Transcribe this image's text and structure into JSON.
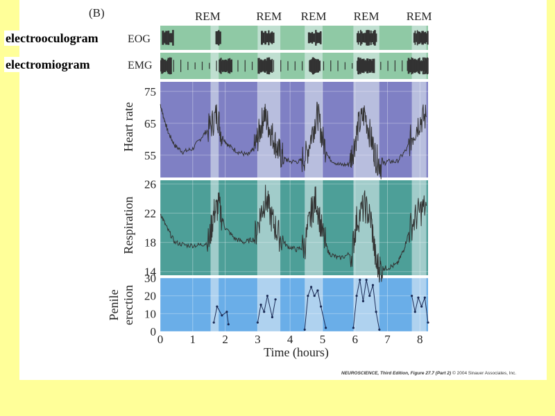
{
  "slide": {
    "eog_full_label": "electrooculogram",
    "emg_full_label": "electromiogram",
    "credit_italic": "NEUROSCIENCE, Third Edition, Figure 27.7 (Part 2)",
    "credit_rest": "© 2004 Sinauer Associates, Inc."
  },
  "colors": {
    "slide_bg": "#ffff99",
    "eog_emg_bg": "#8fc9a5",
    "heart_bg": "#7f80c4",
    "resp_bg": "#4d9f98",
    "penile_bg": "#6aaee8",
    "rem_band": "#e8f1f4",
    "trace": "#333333"
  },
  "chart_data": {
    "type": "line",
    "panel_label": "(B)",
    "xlabel": "Time (hours)",
    "xlim": [
      0,
      8.25
    ],
    "xticks": [
      0,
      1,
      2,
      3,
      4,
      5,
      6,
      7,
      8
    ],
    "rem_label": "REM",
    "rem_periods": [
      [
        1.55,
        1.8
      ],
      [
        3.0,
        3.7
      ],
      [
        4.45,
        5.0
      ],
      [
        5.95,
        6.75
      ],
      [
        7.75,
        8.2
      ]
    ],
    "eog": {
      "label": "EOG",
      "bursts": [
        [
          0.05,
          0.4
        ],
        [
          1.7,
          1.85
        ],
        [
          3.1,
          3.5
        ],
        [
          4.55,
          4.95
        ],
        [
          6.05,
          6.65
        ],
        [
          7.8,
          8.25
        ]
      ]
    },
    "emg": {
      "label": "EMG",
      "bursts": [
        [
          0.0,
          0.35
        ],
        [
          1.8,
          2.2
        ],
        [
          3.0,
          3.45
        ],
        [
          4.6,
          4.9
        ],
        [
          6.05,
          6.6
        ],
        [
          7.6,
          8.25
        ]
      ]
    },
    "heart_rate": {
      "ylabel": "Heart rate",
      "ylim": [
        48,
        78
      ],
      "yticks": [
        55,
        65,
        75
      ],
      "x": [
        0.0,
        0.1,
        0.25,
        0.45,
        0.7,
        1.0,
        1.3,
        1.55,
        1.75,
        1.9,
        2.1,
        2.4,
        2.7,
        2.9,
        3.05,
        3.2,
        3.35,
        3.5,
        3.65,
        3.8,
        4.0,
        4.3,
        4.5,
        4.7,
        4.85,
        5.0,
        5.2,
        5.5,
        5.8,
        5.95,
        6.1,
        6.3,
        6.5,
        6.65,
        6.8,
        7.0,
        7.3,
        7.6,
        7.8,
        8.0,
        8.2
      ],
      "values": [
        71,
        67,
        62,
        58,
        56,
        57,
        61,
        64,
        68,
        61,
        58,
        56,
        55,
        57,
        62,
        68,
        64,
        60,
        56,
        54,
        53,
        53,
        55,
        63,
        68,
        60,
        54,
        52,
        52,
        57,
        64,
        68,
        60,
        54,
        52,
        53,
        53,
        57,
        62,
        66,
        67
      ]
    },
    "respiration": {
      "ylabel": "Respiration",
      "ylim": [
        13.5,
        26.5
      ],
      "yticks": [
        14,
        18,
        22,
        26
      ],
      "x": [
        0.0,
        0.2,
        0.45,
        0.8,
        1.2,
        1.5,
        1.65,
        1.8,
        2.0,
        2.3,
        2.6,
        2.9,
        3.1,
        3.25,
        3.45,
        3.65,
        3.9,
        4.2,
        4.45,
        4.65,
        4.8,
        5.0,
        5.2,
        5.5,
        5.9,
        6.05,
        6.3,
        6.5,
        6.65,
        6.8,
        7.0,
        7.3,
        7.5,
        7.7,
        7.95,
        8.2
      ],
      "values": [
        22,
        20,
        18,
        17.6,
        17.6,
        18,
        22,
        23,
        20,
        18.5,
        18,
        18.5,
        22,
        24,
        21,
        19,
        17.5,
        17,
        17.5,
        22,
        24,
        19,
        16.5,
        15.8,
        16.5,
        21,
        23,
        21,
        15,
        14.5,
        14.5,
        15,
        17,
        20,
        22,
        23
      ]
    },
    "penile": {
      "ylabel": "Penile erection",
      "ylim": [
        0,
        30
      ],
      "yticks": [
        0,
        10,
        20,
        30
      ],
      "episodes": [
        {
          "x": [
            1.65,
            1.75,
            1.9,
            2.05,
            2.1
          ],
          "values": [
            5,
            14,
            9,
            11,
            4
          ]
        },
        {
          "x": [
            3.0,
            3.1,
            3.2,
            3.3,
            3.45,
            3.55
          ],
          "values": [
            5,
            15,
            11,
            20,
            8,
            18
          ]
        },
        {
          "x": [
            4.45,
            4.55,
            4.65,
            4.75,
            4.85,
            4.95,
            5.1
          ],
          "values": [
            1,
            20,
            25,
            20,
            23,
            14,
            2
          ]
        },
        {
          "x": [
            5.95,
            6.05,
            6.15,
            6.25,
            6.35,
            6.45,
            6.55,
            6.65,
            6.75
          ],
          "values": [
            2,
            20,
            29,
            17,
            29,
            20,
            26,
            11,
            1
          ]
        },
        {
          "x": [
            7.75,
            7.85,
            7.95,
            8.05,
            8.15,
            8.25
          ],
          "values": [
            20,
            11,
            19,
            14,
            19,
            5
          ]
        }
      ]
    }
  }
}
